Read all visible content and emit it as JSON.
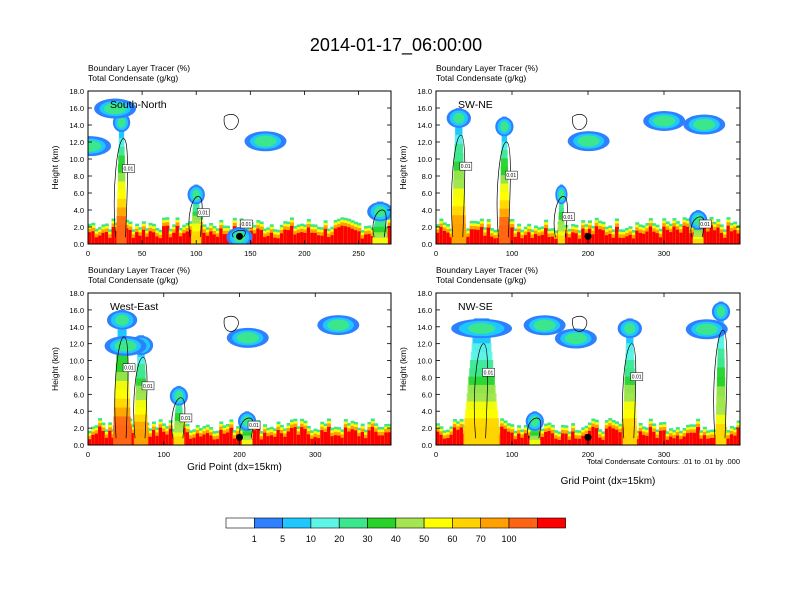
{
  "title": "2014-01-17_06:00:00",
  "footnote": "Total Condensate Contours: .01 to .01 by .000",
  "colorbar": {
    "colors": [
      "#ffffff",
      "#2f80ff",
      "#1ec8ff",
      "#5ff5e6",
      "#3ce68c",
      "#28d228",
      "#a5e650",
      "#ffff00",
      "#ffd200",
      "#ffa000",
      "#ff6414",
      "#ff0000"
    ],
    "labels": [
      "1",
      "5",
      "10",
      "20",
      "30",
      "40",
      "50",
      "60",
      "70",
      "100"
    ]
  },
  "chart_data": [
    {
      "type": "heatmap",
      "section": "South-North",
      "left_title_1": "Boundary Layer Tracer (%)",
      "left_title_2": "Total Condensate (g/kg)",
      "ylabel": "Height (km)",
      "xlabel": "",
      "ylim": [
        0,
        18
      ],
      "xlim": [
        0,
        280
      ],
      "yticks": [
        "0.0",
        "2.0",
        "4.0",
        "6.0",
        "8.0",
        "10.0",
        "12.0",
        "14.0",
        "16.0",
        "18.0"
      ],
      "xticks": [
        50,
        100,
        150,
        200,
        250
      ],
      "xtick_labels": [
        "50",
        "100",
        "150",
        "200",
        "250"
      ],
      "surface_marker_x": 140,
      "contour_labels": [
        "0.01",
        "0.01",
        "0.01"
      ],
      "features": [
        {
          "x": 31,
          "ytop": 15.5,
          "w": 4,
          "intensity": 1.0
        },
        {
          "x": 100,
          "ytop": 7,
          "w": 4,
          "intensity": 0.8
        },
        {
          "x": 140,
          "ytop": 2,
          "w": 6,
          "intensity": 0.6
        },
        {
          "x": 270,
          "ytop": 5,
          "w": 6,
          "intensity": 0.6
        }
      ]
    },
    {
      "type": "heatmap",
      "section": "SW-NE",
      "left_title_1": "Boundary Layer Tracer (%)",
      "left_title_2": "Total Condensate (g/kg)",
      "ylabel": "Height (km)",
      "xlabel": "",
      "ylim": [
        0,
        18
      ],
      "xlim": [
        0,
        400
      ],
      "yticks": [
        "0.0",
        "2.0",
        "4.0",
        "6.0",
        "8.0",
        "10.0",
        "12.0",
        "14.0",
        "16.0",
        "18.0"
      ],
      "xticks": [
        100,
        200,
        300
      ],
      "xtick_labels": [
        "100",
        "200",
        "300"
      ],
      "surface_marker_x": 200,
      "contour_labels": [
        "0.01",
        "0.01",
        "0.01",
        "0.01"
      ],
      "features": [
        {
          "x": 30,
          "ytop": 16,
          "w": 8,
          "intensity": 0.9
        },
        {
          "x": 90,
          "ytop": 15,
          "w": 6,
          "intensity": 1.0
        },
        {
          "x": 165,
          "ytop": 7,
          "w": 4,
          "intensity": 0.7
        },
        {
          "x": 345,
          "ytop": 4,
          "w": 6,
          "intensity": 0.7
        }
      ]
    },
    {
      "type": "heatmap",
      "section": "West-East",
      "left_title_1": "Boundary Layer Tracer (%)",
      "left_title_2": "Total Condensate (g/kg)",
      "ylabel": "Height (km)",
      "xlabel": "Grid Point (dx=15km)",
      "ylim": [
        0,
        18
      ],
      "xlim": [
        0,
        400
      ],
      "yticks": [
        "0.0",
        "2.0",
        "4.0",
        "6.0",
        "8.0",
        "10.0",
        "12.0",
        "14.0",
        "16.0",
        "18.0"
      ],
      "xticks": [
        100,
        200,
        300
      ],
      "xtick_labels": [
        "100",
        "200",
        "300"
      ],
      "surface_marker_x": 200,
      "contour_labels": [
        "0.01",
        "0.01",
        "0.01",
        "0.01"
      ],
      "features": [
        {
          "x": 45,
          "ytop": 16,
          "w": 10,
          "intensity": 1.0
        },
        {
          "x": 70,
          "ytop": 13,
          "w": 8,
          "intensity": 0.9
        },
        {
          "x": 120,
          "ytop": 7,
          "w": 6,
          "intensity": 0.7
        },
        {
          "x": 210,
          "ytop": 4,
          "w": 6,
          "intensity": 0.6
        }
      ]
    },
    {
      "type": "heatmap",
      "section": "NW-SE",
      "left_title_1": "Boundary Layer Tracer (%)",
      "left_title_2": "Total Condensate (g/kg)",
      "ylabel": "Height (km)",
      "xlabel": "Grid Point (dx=15km)",
      "ylim": [
        0,
        18
      ],
      "xlim": [
        0,
        400
      ],
      "yticks": [
        "0.0",
        "2.0",
        "4.0",
        "6.0",
        "8.0",
        "10.0",
        "12.0",
        "14.0",
        "16.0",
        "18.0"
      ],
      "xticks": [
        100,
        200,
        300
      ],
      "xtick_labels": [
        "100",
        "200",
        "300"
      ],
      "surface_marker_x": 200,
      "contour_labels": [
        "0.01",
        "0.01"
      ],
      "features": [
        {
          "x": 60,
          "ytop": 15,
          "w": 20,
          "intensity": 0.8
        },
        {
          "x": 255,
          "ytop": 15,
          "w": 8,
          "intensity": 0.8
        },
        {
          "x": 375,
          "ytop": 17,
          "w": 6,
          "intensity": 0.7
        },
        {
          "x": 130,
          "ytop": 4,
          "w": 6,
          "intensity": 0.6
        }
      ]
    }
  ]
}
